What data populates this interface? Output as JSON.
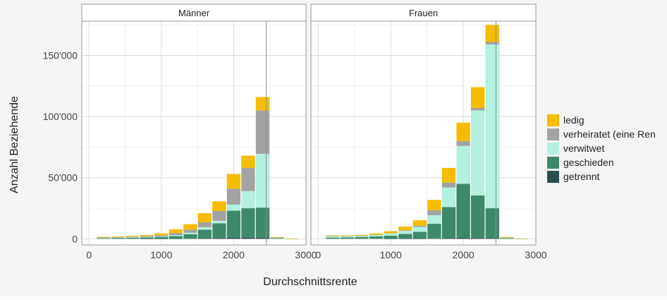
{
  "chart_data": {
    "type": "bar",
    "stacked": true,
    "ylabel": "Anzahl Beziehende",
    "xlabel": "Durchschnittsrente",
    "xlim": [
      -100,
      3000
    ],
    "ylim": [
      -5000,
      178000
    ],
    "x_ticks": [
      0,
      1000,
      2000,
      3000
    ],
    "x_tick_labels": [
      "0",
      "1000",
      "2000",
      "3000"
    ],
    "y_ticks": [
      0,
      50000,
      100000,
      150000
    ],
    "y_tick_labels": [
      "0",
      "50'000",
      "100'000",
      "150'000"
    ],
    "grid": true,
    "legend_position": "right",
    "reference_line_x": 2450,
    "bin_width": 200,
    "series_order": [
      "getrennt",
      "geschieden",
      "verwitwet",
      "verheiratet",
      "ledig"
    ],
    "series_meta": [
      {
        "key": "ledig",
        "name": "ledig",
        "color": "#f5bc00"
      },
      {
        "key": "verheiratet",
        "name": "verheiratet (eine Ren",
        "color": "#a3a3a3"
      },
      {
        "key": "verwitwet",
        "name": "verwitwet",
        "color": "#b3f0df"
      },
      {
        "key": "geschieden",
        "name": "geschieden",
        "color": "#3d8a6b"
      },
      {
        "key": "getrennt",
        "name": "getrennt",
        "color": "#274f4f"
      }
    ],
    "panels": [
      {
        "title": "Männer",
        "bins": [
          {
            "x": 200,
            "getrennt": 0,
            "geschieden": 500,
            "verwitwet": 300,
            "verheiratet": 400,
            "ledig": 500
          },
          {
            "x": 400,
            "getrennt": 0,
            "geschieden": 700,
            "verwitwet": 300,
            "verheiratet": 400,
            "ledig": 500
          },
          {
            "x": 600,
            "getrennt": 0,
            "geschieden": 900,
            "verwitwet": 300,
            "verheiratet": 500,
            "ledig": 600
          },
          {
            "x": 800,
            "getrennt": 100,
            "geschieden": 1100,
            "verwitwet": 400,
            "verheiratet": 600,
            "ledig": 900
          },
          {
            "x": 1000,
            "getrennt": 100,
            "geschieden": 1500,
            "verwitwet": 500,
            "verheiratet": 900,
            "ledig": 1500
          },
          {
            "x": 1200,
            "getrennt": 200,
            "geschieden": 2000,
            "verwitwet": 800,
            "verheiratet": 1800,
            "ledig": 3000
          },
          {
            "x": 1400,
            "getrennt": 300,
            "geschieden": 3500,
            "verwitwet": 1200,
            "verheiratet": 2500,
            "ledig": 4500
          },
          {
            "x": 1600,
            "getrennt": 500,
            "geschieden": 7000,
            "verwitwet": 2000,
            "verheiratet": 4000,
            "ledig": 7500
          },
          {
            "x": 1800,
            "getrennt": 700,
            "geschieden": 12000,
            "verwitwet": 2000,
            "verheiratet": 8000,
            "ledig": 8000
          },
          {
            "x": 2000,
            "getrennt": 1000,
            "geschieden": 22000,
            "verwitwet": 5000,
            "verheiratet": 13000,
            "ledig": 12000
          },
          {
            "x": 2200,
            "getrennt": 1000,
            "geschieden": 24000,
            "verwitwet": 14000,
            "verheiratet": 19000,
            "ledig": 10000
          },
          {
            "x": 2400,
            "getrennt": 1000,
            "geschieden": 24500,
            "verwitwet": 44000,
            "verheiratet": 35500,
            "ledig": 11000
          },
          {
            "x": 2600,
            "getrennt": 0,
            "geschieden": 500,
            "verwitwet": 300,
            "verheiratet": 300,
            "ledig": 400
          },
          {
            "x": 2800,
            "getrennt": 0,
            "geschieden": 100,
            "verwitwet": 0,
            "verheiratet": 0,
            "ledig": 100
          }
        ]
      },
      {
        "title": "Frauen",
        "bins": [
          {
            "x": 200,
            "getrennt": 0,
            "geschieden": 1000,
            "verwitwet": 1200,
            "verheiratet": 100,
            "ledig": 500
          },
          {
            "x": 400,
            "getrennt": 0,
            "geschieden": 1200,
            "verwitwet": 1000,
            "verheiratet": 100,
            "ledig": 500
          },
          {
            "x": 600,
            "getrennt": 0,
            "geschieden": 1500,
            "verwitwet": 1000,
            "verheiratet": 100,
            "ledig": 600
          },
          {
            "x": 800,
            "getrennt": 0,
            "geschieden": 2000,
            "verwitwet": 1200,
            "verheiratet": 200,
            "ledig": 1000
          },
          {
            "x": 1000,
            "getrennt": 100,
            "geschieden": 2500,
            "verwitwet": 1800,
            "verheiratet": 300,
            "ledig": 1500
          },
          {
            "x": 1200,
            "getrennt": 200,
            "geschieden": 3800,
            "verwitwet": 2500,
            "verheiratet": 500,
            "ledig": 3000
          },
          {
            "x": 1400,
            "getrennt": 200,
            "geschieden": 5500,
            "verwitwet": 4000,
            "verheiratet": 1000,
            "ledig": 4500
          },
          {
            "x": 1600,
            "getrennt": 300,
            "geschieden": 12000,
            "verwitwet": 7000,
            "verheiratet": 4000,
            "ledig": 8500
          },
          {
            "x": 1800,
            "getrennt": 500,
            "geschieden": 25500,
            "verwitwet": 16000,
            "verheiratet": 4000,
            "ledig": 12000
          },
          {
            "x": 2000,
            "getrennt": 800,
            "geschieden": 44200,
            "verwitwet": 31000,
            "verheiratet": 4000,
            "ledig": 15000
          },
          {
            "x": 2200,
            "getrennt": 700,
            "geschieden": 34800,
            "verwitwet": 69500,
            "verheiratet": 2000,
            "ledig": 17000
          },
          {
            "x": 2400,
            "getrennt": 500,
            "geschieden": 24500,
            "verwitwet": 134000,
            "verheiratet": 2000,
            "ledig": 14000
          },
          {
            "x": 2600,
            "getrennt": 0,
            "geschieden": 500,
            "verwitwet": 400,
            "verheiratet": 100,
            "ledig": 500
          },
          {
            "x": 2800,
            "getrennt": 0,
            "geschieden": 100,
            "verwitwet": 100,
            "verheiratet": 0,
            "ledig": 100
          }
        ]
      }
    ]
  }
}
